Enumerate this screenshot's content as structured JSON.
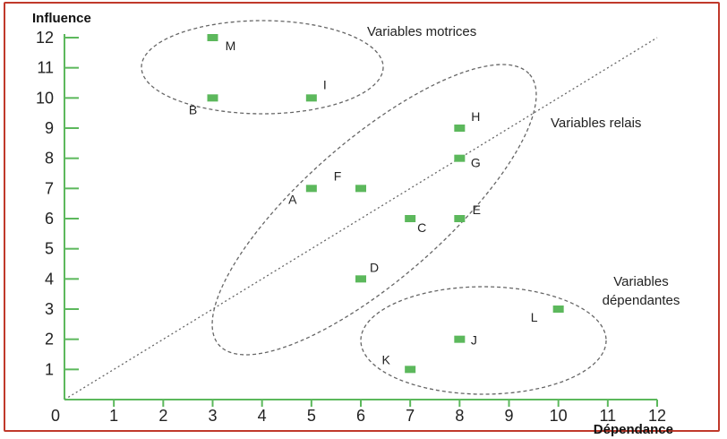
{
  "chart_data": {
    "type": "scatter",
    "xlabel": "Dépendance",
    "ylabel": "Influence",
    "xlim": [
      0,
      12
    ],
    "ylim": [
      0,
      12
    ],
    "x_ticks": [
      "0",
      "1",
      "2",
      "3",
      "4",
      "5",
      "6",
      "7",
      "8",
      "9",
      "10",
      "11",
      "12"
    ],
    "y_ticks": [
      "1",
      "2",
      "3",
      "4",
      "5",
      "6",
      "7",
      "8",
      "9",
      "10",
      "11",
      "12"
    ],
    "grid": false,
    "points": [
      {
        "label": "M",
        "x": 3,
        "y": 12
      },
      {
        "label": "B",
        "x": 3,
        "y": 10
      },
      {
        "label": "I",
        "x": 5,
        "y": 10
      },
      {
        "label": "H",
        "x": 8,
        "y": 9
      },
      {
        "label": "G",
        "x": 8,
        "y": 8
      },
      {
        "label": "A",
        "x": 5,
        "y": 7
      },
      {
        "label": "F",
        "x": 6,
        "y": 7
      },
      {
        "label": "C",
        "x": 7,
        "y": 6
      },
      {
        "label": "E",
        "x": 8,
        "y": 6
      },
      {
        "label": "D",
        "x": 6,
        "y": 4
      },
      {
        "label": "L",
        "x": 10,
        "y": 3
      },
      {
        "label": "J",
        "x": 8,
        "y": 2
      },
      {
        "label": "K",
        "x": 7,
        "y": 1
      }
    ],
    "reference_line": {
      "from": [
        0,
        0
      ],
      "to": [
        12,
        12
      ],
      "style": "dotted"
    },
    "groups": [
      {
        "label_lines": [
          "Variables motrices"
        ],
        "members": [
          "M",
          "B",
          "I"
        ]
      },
      {
        "label_lines": [
          "Variables relais"
        ],
        "members": [
          "H",
          "G",
          "A",
          "F",
          "C",
          "E",
          "D"
        ]
      },
      {
        "label_lines": [
          "Variables",
          "dépendantes"
        ],
        "members": [
          "L",
          "J",
          "K"
        ]
      }
    ],
    "colors": {
      "marker": "#5cb85c",
      "axis": "#5cb85c",
      "guide": "#666666",
      "frame": "#c0392b"
    }
  }
}
